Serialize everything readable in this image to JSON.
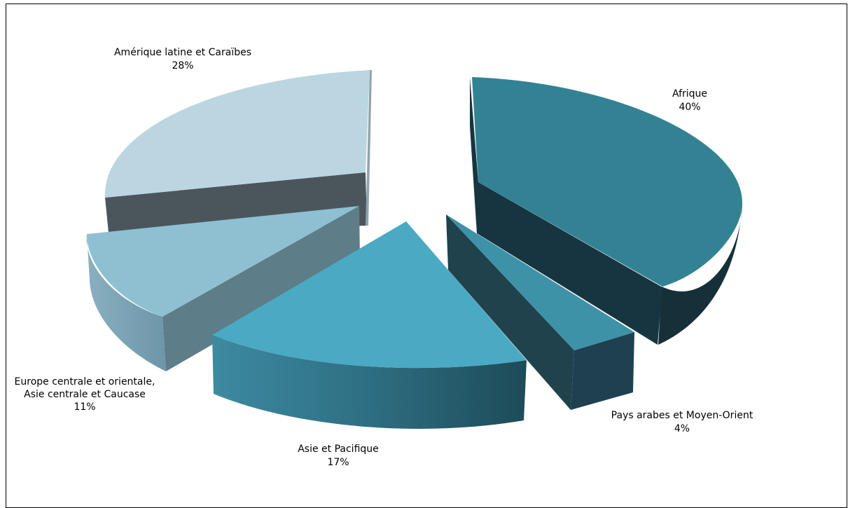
{
  "chart_data": {
    "type": "pie",
    "title": "",
    "legend": "none",
    "slices": [
      {
        "label": "Afrique",
        "pct_label": "40%",
        "value": 40,
        "color": "#338294"
      },
      {
        "label": "Pays arabes et Moyen-Orient",
        "pct_label": "4%",
        "value": 4,
        "color": "#3e92a8"
      },
      {
        "label": "Asie et Pacifique",
        "pct_label": "17%",
        "value": 17,
        "color": "#4aa9c3"
      },
      {
        "label_lines": [
          "Europe centrale et orientale,",
          "Asie centrale et Caucase"
        ],
        "pct_label": "11%",
        "value": 11,
        "color": "#8ec0d2"
      },
      {
        "label": "Amérique latine et Caraïbes",
        "pct_label": "28%",
        "value": 28,
        "color": "#bbd6e0"
      }
    ]
  }
}
